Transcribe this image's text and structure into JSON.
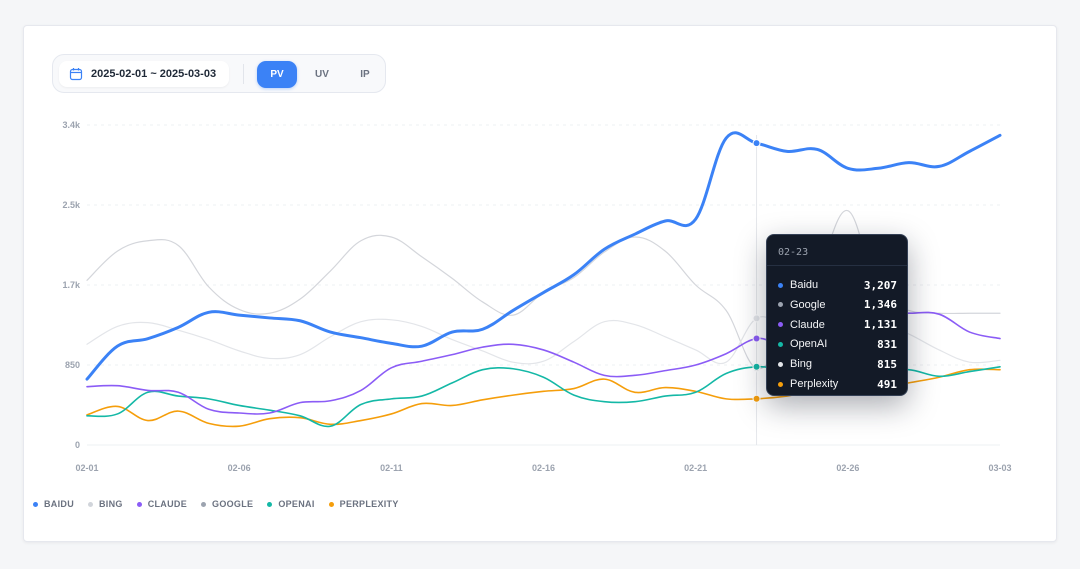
{
  "toolbar": {
    "date_range": "2025-02-01 ~ 2025-03-03",
    "metrics": [
      "PV",
      "UV",
      "IP"
    ],
    "active_metric": "PV"
  },
  "colors": {
    "accent": "#3b82f6",
    "baidu": "#3b82f6",
    "bing": "#d1d5db",
    "claude": "#8b5cf6",
    "google": "#9ca3af",
    "openai": "#14b8a6",
    "perplexity": "#f59e0b"
  },
  "tooltip": {
    "date": "02-23",
    "rows": [
      {
        "name": "Baidu",
        "value": "3,207",
        "color": "#3b82f6"
      },
      {
        "name": "Google",
        "value": "1,346",
        "color": "#9ca3af"
      },
      {
        "name": "Claude",
        "value": "1,131",
        "color": "#8b5cf6"
      },
      {
        "name": "OpenAI",
        "value": "831",
        "color": "#14b8a6"
      },
      {
        "name": "Bing",
        "value": "815",
        "color": "#e5e7eb"
      },
      {
        "name": "Perplexity",
        "value": "491",
        "color": "#f59e0b"
      }
    ]
  },
  "legend": [
    {
      "label": "BAIDU",
      "color": "#3b82f6"
    },
    {
      "label": "BING",
      "color": "#d1d5db"
    },
    {
      "label": "CLAUDE",
      "color": "#8b5cf6"
    },
    {
      "label": "GOOGLE",
      "color": "#9ca3af"
    },
    {
      "label": "OPENAI",
      "color": "#14b8a6"
    },
    {
      "label": "PERPLEXITY",
      "color": "#f59e0b"
    }
  ],
  "chart_data": {
    "type": "line",
    "x_tick_labels": [
      "02-01",
      "02-06",
      "02-11",
      "02-16",
      "02-21",
      "02-26",
      "03-03"
    ],
    "y_tick_labels": [
      "0",
      "850",
      "1.7k",
      "2.5k",
      "3.4k"
    ],
    "ylim": [
      0,
      3400
    ],
    "grid": true,
    "legend_position": "bottom-left",
    "hover_category": "02-23",
    "categories": [
      "02-01",
      "02-02",
      "02-03",
      "02-04",
      "02-05",
      "02-06",
      "02-07",
      "02-08",
      "02-09",
      "02-10",
      "02-11",
      "02-12",
      "02-13",
      "02-14",
      "02-15",
      "02-16",
      "02-17",
      "02-18",
      "02-19",
      "02-20",
      "02-21",
      "02-22",
      "02-23",
      "02-24",
      "02-25",
      "02-26",
      "02-27",
      "02-28",
      "03-01",
      "03-02",
      "03-03"
    ],
    "series": [
      {
        "name": "Baidu",
        "color": "#3b82f6",
        "width": 3,
        "values": [
          700,
          1050,
          1130,
          1250,
          1410,
          1380,
          1350,
          1320,
          1200,
          1140,
          1080,
          1050,
          1200,
          1230,
          1430,
          1620,
          1810,
          2080,
          2240,
          2380,
          2400,
          3260,
          3207,
          3120,
          3140,
          2940,
          2940,
          3000,
          2960,
          3120,
          3290
        ]
      },
      {
        "name": "Bing",
        "color": "#d4d6db",
        "width": 1.2,
        "values": [
          1750,
          2060,
          2170,
          2120,
          1680,
          1440,
          1400,
          1550,
          1850,
          2170,
          2210,
          2000,
          1770,
          1520,
          1380,
          1620,
          1780,
          2050,
          2210,
          2060,
          1700,
          1430,
          815,
          1200,
          1810,
          2490,
          1600,
          1430,
          1400,
          1400,
          1400
        ]
      },
      {
        "name": "Claude",
        "color": "#8b5cf6",
        "width": 1.6,
        "values": [
          620,
          630,
          580,
          560,
          380,
          340,
          340,
          450,
          470,
          580,
          820,
          890,
          960,
          1040,
          1070,
          1010,
          880,
          740,
          740,
          790,
          850,
          970,
          1131,
          1080,
          1380,
          1440,
          1390,
          1400,
          1390,
          1200,
          1131
        ]
      },
      {
        "name": "Google",
        "color": "#e3e5e9",
        "width": 1.2,
        "values": [
          1070,
          1260,
          1300,
          1220,
          1120,
          1000,
          920,
          960,
          1150,
          1310,
          1330,
          1260,
          1120,
          1000,
          880,
          890,
          1100,
          1310,
          1280,
          1150,
          1010,
          880,
          1346,
          1260,
          1330,
          1300,
          1310,
          1180,
          1010,
          880,
          900
        ]
      },
      {
        "name": "OpenAI",
        "color": "#14b8a6",
        "width": 1.6,
        "values": [
          310,
          330,
          560,
          520,
          490,
          420,
          370,
          310,
          200,
          430,
          490,
          520,
          660,
          800,
          810,
          720,
          530,
          460,
          460,
          520,
          560,
          760,
          831,
          800,
          800,
          780,
          770,
          800,
          730,
          780,
          831
        ]
      },
      {
        "name": "Perplexity",
        "color": "#f59e0b",
        "width": 1.6,
        "values": [
          320,
          410,
          260,
          360,
          230,
          200,
          280,
          290,
          220,
          260,
          330,
          440,
          420,
          480,
          530,
          570,
          600,
          700,
          560,
          610,
          570,
          490,
          491,
          520,
          580,
          590,
          600,
          660,
          720,
          800,
          800
        ]
      }
    ]
  }
}
